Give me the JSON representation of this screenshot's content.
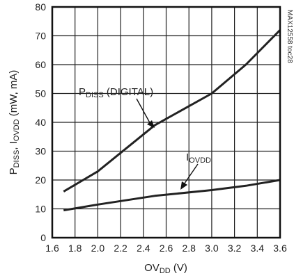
{
  "chart_data": {
    "type": "line",
    "figure_code": "MAX12558 toc28",
    "xlabel": {
      "main": "OV",
      "sub": "DD",
      "tail": " (V)"
    },
    "ylabel": {
      "p1": "P",
      "p1sub": "DISS",
      "p2": ", I",
      "p2sub": "OVDD",
      "p3": " (mW, mA)"
    },
    "xlim": [
      1.6,
      3.6
    ],
    "ylim": [
      0,
      80
    ],
    "x_ticks": [
      "1.6",
      "1.8",
      "2.0",
      "2.2",
      "2.4",
      "2.6",
      "2.8",
      "3.0",
      "3.2",
      "3.4",
      "3.6"
    ],
    "y_ticks": [
      "0",
      "10",
      "20",
      "30",
      "40",
      "50",
      "60",
      "70",
      "80"
    ],
    "grid": true,
    "series": [
      {
        "label_main": "P",
        "label_sub": "DISS",
        "label_tail": " (DIGITAL)",
        "x": [
          1.7,
          2.0,
          2.5,
          3.0,
          3.3,
          3.6
        ],
        "y": [
          16,
          23,
          39,
          50,
          60,
          72
        ]
      },
      {
        "label_main": "I",
        "label_sub": "OVDD",
        "label_tail": "",
        "x": [
          1.7,
          2.0,
          2.5,
          3.0,
          3.3,
          3.6
        ],
        "y": [
          9.5,
          11.5,
          14.5,
          16.5,
          18,
          20
        ]
      }
    ]
  }
}
